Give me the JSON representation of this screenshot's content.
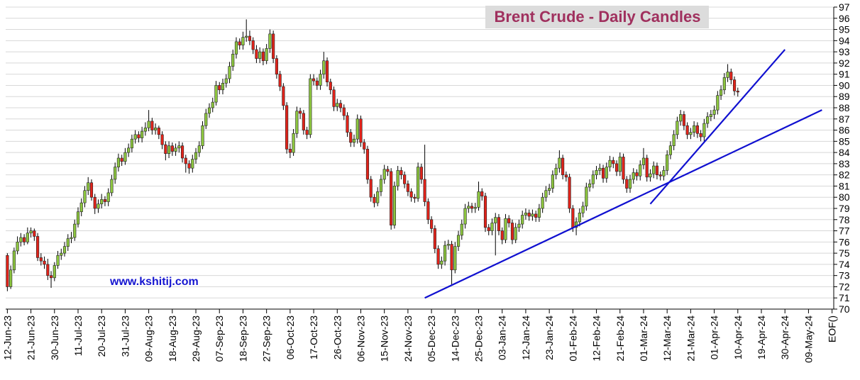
{
  "chart_data": {
    "type": "candlestick",
    "title": "Brent Crude - Daily Candles",
    "annotation": "www.kshitij.com",
    "up_color": "#8dc63f",
    "down_color": "#e2231a",
    "grid": true,
    "ylim": [
      70,
      97
    ],
    "yticks": [
      70,
      71,
      72,
      73,
      74,
      75,
      76,
      77,
      78,
      79,
      80,
      81,
      82,
      83,
      84,
      85,
      86,
      87,
      88,
      89,
      90,
      91,
      92,
      93,
      94,
      95,
      96,
      97
    ],
    "xlim": [
      -0.5,
      245.5
    ],
    "xticks": [
      {
        "value": 0,
        "label": "12-Jun-23"
      },
      {
        "value": 7,
        "label": "21-Jun-23"
      },
      {
        "value": 14,
        "label": "30-Jun-23"
      },
      {
        "value": 21,
        "label": "11-Jul-23"
      },
      {
        "value": 28,
        "label": "20-Jul-23"
      },
      {
        "value": 35,
        "label": "31-Jul-23"
      },
      {
        "value": 42,
        "label": "09-Aug-23"
      },
      {
        "value": 49,
        "label": "18-Aug-23"
      },
      {
        "value": 56,
        "label": "29-Aug-23"
      },
      {
        "value": 63,
        "label": "07-Sep-23"
      },
      {
        "value": 70,
        "label": "18-Sep-23"
      },
      {
        "value": 77,
        "label": "27-Sep-23"
      },
      {
        "value": 84,
        "label": "06-Oct-23"
      },
      {
        "value": 91,
        "label": "17-Oct-23"
      },
      {
        "value": 98,
        "label": "26-Oct-23"
      },
      {
        "value": 105,
        "label": "06-Nov-23"
      },
      {
        "value": 112,
        "label": "15-Nov-23"
      },
      {
        "value": 119,
        "label": "24-Nov-23"
      },
      {
        "value": 126,
        "label": "05-Dec-23"
      },
      {
        "value": 133,
        "label": "14-Dec-23"
      },
      {
        "value": 140,
        "label": "25-Dec-23"
      },
      {
        "value": 147,
        "label": "03-Jan-24"
      },
      {
        "value": 154,
        "label": "12-Jan-24"
      },
      {
        "value": 161,
        "label": "23-Jan-24"
      },
      {
        "value": 168,
        "label": "01-Feb-24"
      },
      {
        "value": 175,
        "label": "12-Feb-24"
      },
      {
        "value": 182,
        "label": "21-Feb-24"
      },
      {
        "value": 189,
        "label": "01-Mar-24"
      },
      {
        "value": 196,
        "label": "12-Mar-24"
      },
      {
        "value": 203,
        "label": "21-Mar-24"
      },
      {
        "value": 210,
        "label": "01-Apr-24"
      },
      {
        "value": 217,
        "label": "10-Apr-24"
      },
      {
        "value": 224,
        "label": "19-Apr-24"
      },
      {
        "value": 231,
        "label": "30-Apr-24"
      },
      {
        "value": 238,
        "label": "09-May-24"
      },
      {
        "value": 245,
        "label": "EOF()"
      }
    ],
    "candles": [
      [
        74.8,
        75.0,
        71.6,
        72.0
      ],
      [
        72.0,
        73.9,
        71.8,
        73.5
      ],
      [
        73.5,
        75.5,
        73.2,
        75.2
      ],
      [
        75.2,
        76.5,
        74.9,
        76.0
      ],
      [
        76.0,
        76.8,
        75.6,
        76.4
      ],
      [
        76.4,
        76.7,
        75.7,
        76.0
      ],
      [
        76.0,
        77.3,
        75.8,
        76.8
      ],
      [
        76.8,
        77.3,
        76.4,
        77.0
      ],
      [
        77.0,
        77.2,
        76.1,
        76.5
      ],
      [
        76.5,
        76.8,
        74.3,
        74.6
      ],
      [
        74.6,
        75.0,
        73.9,
        74.3
      ],
      [
        74.3,
        74.7,
        73.6,
        74.0
      ],
      [
        74.0,
        74.5,
        72.6,
        73.0
      ],
      [
        73.0,
        73.4,
        71.9,
        72.8
      ],
      [
        72.8,
        74.2,
        72.5,
        73.9
      ],
      [
        73.9,
        75.2,
        73.6,
        74.8
      ],
      [
        74.8,
        75.4,
        74.4,
        75.0
      ],
      [
        75.0,
        76.0,
        74.7,
        75.6
      ],
      [
        75.6,
        76.7,
        75.2,
        76.3
      ],
      [
        76.3,
        76.9,
        75.9,
        76.4
      ],
      [
        76.4,
        78.0,
        76.1,
        77.6
      ],
      [
        77.6,
        79.1,
        77.3,
        78.7
      ],
      [
        78.7,
        79.9,
        78.3,
        79.5
      ],
      [
        79.5,
        81.0,
        79.1,
        80.6
      ],
      [
        80.6,
        81.8,
        80.2,
        81.3
      ],
      [
        81.3,
        81.6,
        79.7,
        80.0
      ],
      [
        80.0,
        80.3,
        78.5,
        79.0
      ],
      [
        79.0,
        79.8,
        78.6,
        79.4
      ],
      [
        79.4,
        80.3,
        79.0,
        79.8
      ],
      [
        79.8,
        80.1,
        79.2,
        79.6
      ],
      [
        79.6,
        80.8,
        79.2,
        80.4
      ],
      [
        80.4,
        82.0,
        80.1,
        81.6
      ],
      [
        81.6,
        83.1,
        81.2,
        82.7
      ],
      [
        82.7,
        83.9,
        82.3,
        83.5
      ],
      [
        83.5,
        83.8,
        82.8,
        83.2
      ],
      [
        83.2,
        84.4,
        82.9,
        84.0
      ],
      [
        84.0,
        84.8,
        83.6,
        84.4
      ],
      [
        84.4,
        85.6,
        84.0,
        85.2
      ],
      [
        85.2,
        86.0,
        84.8,
        85.6
      ],
      [
        85.6,
        85.9,
        84.9,
        85.3
      ],
      [
        85.3,
        86.3,
        84.9,
        85.9
      ],
      [
        85.9,
        86.7,
        85.5,
        86.2
      ],
      [
        86.2,
        87.8,
        85.9,
        86.8
      ],
      [
        86.8,
        87.1,
        85.6,
        86.0
      ],
      [
        86.0,
        86.6,
        85.6,
        86.2
      ],
      [
        86.2,
        86.4,
        85.2,
        85.6
      ],
      [
        85.6,
        85.9,
        84.3,
        84.7
      ],
      [
        84.7,
        85.0,
        83.3,
        83.9
      ],
      [
        83.9,
        85.0,
        83.5,
        84.6
      ],
      [
        84.6,
        84.9,
        83.7,
        84.1
      ],
      [
        84.1,
        84.8,
        83.7,
        84.4
      ],
      [
        84.4,
        85.0,
        84.0,
        84.6
      ],
      [
        84.6,
        84.9,
        83.1,
        83.5
      ],
      [
        83.5,
        83.8,
        82.2,
        83.0
      ],
      [
        83.0,
        83.3,
        82.1,
        82.6
      ],
      [
        82.6,
        83.8,
        82.2,
        83.4
      ],
      [
        83.4,
        84.4,
        83.0,
        84.0
      ],
      [
        84.0,
        85.0,
        83.6,
        84.6
      ],
      [
        84.6,
        86.8,
        84.3,
        86.4
      ],
      [
        86.4,
        87.9,
        86.1,
        87.5
      ],
      [
        87.5,
        88.4,
        87.1,
        88.0
      ],
      [
        88.0,
        88.9,
        87.6,
        88.5
      ],
      [
        88.5,
        90.4,
        88.2,
        90.0
      ],
      [
        90.0,
        90.3,
        89.2,
        89.6
      ],
      [
        89.6,
        90.6,
        89.2,
        90.2
      ],
      [
        90.2,
        91.0,
        89.8,
        90.6
      ],
      [
        90.6,
        92.1,
        90.2,
        91.7
      ],
      [
        91.7,
        93.2,
        91.3,
        92.8
      ],
      [
        92.8,
        94.3,
        92.4,
        93.9
      ],
      [
        93.9,
        94.2,
        93.2,
        93.6
      ],
      [
        93.6,
        94.8,
        93.2,
        94.3
      ],
      [
        94.3,
        95.9,
        93.9,
        94.4
      ],
      [
        94.4,
        94.9,
        93.6,
        94.0
      ],
      [
        94.0,
        94.3,
        92.8,
        93.2
      ],
      [
        93.2,
        93.6,
        92.0,
        92.4
      ],
      [
        92.4,
        93.4,
        92.0,
        93.0
      ],
      [
        93.0,
        93.3,
        91.8,
        92.2
      ],
      [
        92.2,
        93.7,
        91.9,
        93.3
      ],
      [
        93.3,
        95.0,
        92.9,
        94.6
      ],
      [
        94.6,
        94.9,
        92.0,
        92.4
      ],
      [
        92.4,
        92.7,
        90.6,
        91.0
      ],
      [
        91.0,
        91.3,
        89.5,
        89.9
      ],
      [
        89.9,
        90.2,
        87.8,
        88.2
      ],
      [
        88.2,
        88.5,
        83.9,
        84.3
      ],
      [
        84.3,
        84.8,
        83.5,
        84.0
      ],
      [
        84.0,
        86.1,
        83.7,
        85.7
      ],
      [
        85.7,
        88.1,
        85.3,
        87.7
      ],
      [
        87.7,
        88.0,
        87.0,
        87.5
      ],
      [
        87.5,
        87.8,
        85.6,
        86.0
      ],
      [
        86.0,
        86.3,
        85.2,
        85.6
      ],
      [
        85.6,
        91.0,
        85.3,
        90.6
      ],
      [
        90.6,
        91.0,
        90.0,
        90.4
      ],
      [
        90.4,
        90.7,
        89.6,
        90.0
      ],
      [
        90.0,
        91.4,
        89.6,
        91.0
      ],
      [
        91.0,
        93.0,
        90.6,
        92.2
      ],
      [
        92.2,
        92.5,
        89.9,
        90.3
      ],
      [
        90.3,
        90.6,
        89.2,
        89.6
      ],
      [
        89.6,
        89.9,
        87.7,
        88.1
      ],
      [
        88.1,
        88.8,
        87.7,
        88.4
      ],
      [
        88.4,
        88.7,
        87.6,
        88.0
      ],
      [
        88.0,
        88.3,
        86.9,
        87.3
      ],
      [
        87.3,
        87.6,
        85.4,
        85.8
      ],
      [
        85.8,
        86.1,
        84.5,
        84.9
      ],
      [
        84.9,
        85.6,
        84.5,
        85.2
      ],
      [
        85.2,
        87.4,
        84.8,
        87.0
      ],
      [
        87.0,
        87.3,
        84.5,
        84.9
      ],
      [
        84.9,
        85.2,
        83.9,
        84.3
      ],
      [
        84.3,
        84.6,
        81.2,
        81.6
      ],
      [
        81.6,
        81.9,
        79.6,
        80.0
      ],
      [
        80.0,
        80.3,
        79.1,
        79.5
      ],
      [
        79.5,
        80.9,
        79.2,
        80.5
      ],
      [
        80.5,
        82.0,
        80.1,
        81.6
      ],
      [
        81.6,
        82.9,
        81.2,
        82.5
      ],
      [
        82.5,
        82.8,
        81.9,
        82.3
      ],
      [
        82.3,
        82.6,
        77.1,
        77.5
      ],
      [
        77.5,
        81.4,
        77.2,
        81.0
      ],
      [
        81.0,
        82.8,
        80.6,
        82.4
      ],
      [
        82.4,
        82.7,
        81.6,
        82.0
      ],
      [
        82.0,
        82.3,
        80.8,
        81.2
      ],
      [
        81.2,
        81.5,
        80.1,
        80.5
      ],
      [
        80.5,
        80.8,
        79.6,
        80.0
      ],
      [
        80.0,
        80.3,
        79.5,
        79.9
      ],
      [
        79.9,
        83.1,
        79.6,
        82.7
      ],
      [
        82.7,
        83.0,
        81.2,
        81.6
      ],
      [
        81.6,
        84.7,
        79.2,
        79.6
      ],
      [
        79.6,
        79.9,
        77.6,
        78.0
      ],
      [
        78.0,
        78.3,
        76.8,
        77.2
      ],
      [
        77.2,
        77.5,
        75.0,
        75.4
      ],
      [
        75.4,
        75.7,
        73.6,
        74.0
      ],
      [
        74.0,
        74.7,
        73.6,
        74.3
      ],
      [
        74.3,
        76.1,
        73.9,
        75.7
      ],
      [
        75.7,
        76.2,
        75.3,
        75.8
      ],
      [
        75.8,
        76.1,
        72.2,
        73.5
      ],
      [
        73.5,
        76.0,
        73.2,
        75.6
      ],
      [
        75.6,
        77.0,
        75.2,
        76.6
      ],
      [
        76.6,
        78.0,
        76.2,
        77.6
      ],
      [
        77.6,
        79.4,
        77.2,
        79.0
      ],
      [
        79.0,
        79.6,
        78.6,
        79.2
      ],
      [
        79.2,
        79.5,
        78.6,
        79.0
      ],
      [
        79.0,
        79.5,
        78.6,
        79.1
      ],
      [
        79.1,
        81.4,
        78.8,
        80.5
      ],
      [
        80.5,
        80.8,
        79.7,
        80.1
      ],
      [
        80.1,
        80.4,
        76.9,
        77.3
      ],
      [
        77.3,
        77.6,
        76.6,
        77.0
      ],
      [
        77.0,
        78.1,
        76.6,
        77.7
      ],
      [
        77.7,
        78.6,
        74.8,
        78.2
      ],
      [
        78.2,
        78.5,
        76.6,
        77.0
      ],
      [
        77.0,
        77.3,
        75.8,
        76.2
      ],
      [
        76.2,
        78.5,
        75.9,
        78.1
      ],
      [
        78.1,
        78.4,
        77.3,
        77.7
      ],
      [
        77.7,
        78.0,
        75.8,
        76.2
      ],
      [
        76.2,
        77.7,
        75.9,
        77.3
      ],
      [
        77.3,
        78.0,
        76.9,
        77.6
      ],
      [
        77.6,
        78.8,
        77.2,
        78.4
      ],
      [
        78.4,
        79.0,
        78.0,
        78.6
      ],
      [
        78.6,
        78.9,
        77.9,
        78.3
      ],
      [
        78.3,
        78.9,
        77.9,
        78.5
      ],
      [
        78.5,
        78.8,
        77.8,
        78.2
      ],
      [
        78.2,
        79.4,
        77.8,
        79.0
      ],
      [
        79.0,
        80.4,
        78.6,
        80.0
      ],
      [
        80.0,
        81.0,
        79.6,
        80.6
      ],
      [
        80.6,
        81.2,
        80.2,
        80.8
      ],
      [
        80.8,
        82.4,
        80.4,
        82.0
      ],
      [
        82.0,
        83.0,
        81.6,
        82.6
      ],
      [
        82.6,
        84.2,
        82.2,
        83.5
      ],
      [
        83.5,
        83.8,
        81.6,
        82.0
      ],
      [
        82.0,
        82.3,
        81.4,
        81.8
      ],
      [
        81.8,
        82.1,
        78.6,
        79.0
      ],
      [
        79.0,
        79.3,
        76.9,
        77.3
      ],
      [
        77.3,
        78.2,
        76.6,
        77.8
      ],
      [
        77.8,
        79.0,
        77.4,
        78.6
      ],
      [
        78.6,
        79.6,
        78.2,
        79.2
      ],
      [
        79.2,
        81.3,
        78.8,
        80.9
      ],
      [
        80.9,
        81.6,
        80.5,
        81.2
      ],
      [
        81.2,
        82.4,
        80.8,
        82.0
      ],
      [
        82.0,
        82.8,
        81.6,
        82.4
      ],
      [
        82.4,
        83.0,
        82.0,
        82.6
      ],
      [
        82.6,
        82.9,
        81.3,
        81.7
      ],
      [
        81.7,
        83.1,
        81.3,
        82.7
      ],
      [
        82.7,
        83.7,
        82.3,
        83.3
      ],
      [
        83.3,
        83.6,
        82.6,
        83.0
      ],
      [
        83.0,
        83.3,
        81.9,
        82.3
      ],
      [
        82.3,
        84.0,
        81.9,
        83.6
      ],
      [
        83.6,
        83.9,
        81.2,
        81.6
      ],
      [
        81.6,
        81.9,
        80.4,
        80.8
      ],
      [
        80.8,
        82.0,
        80.4,
        81.6
      ],
      [
        81.6,
        82.6,
        81.2,
        82.2
      ],
      [
        82.2,
        82.5,
        81.5,
        81.9
      ],
      [
        81.9,
        83.3,
        81.5,
        82.9
      ],
      [
        82.9,
        84.4,
        82.5,
        83.5
      ],
      [
        83.5,
        83.8,
        81.4,
        81.8
      ],
      [
        81.8,
        82.5,
        81.4,
        82.1
      ],
      [
        82.1,
        83.2,
        81.7,
        82.8
      ],
      [
        82.8,
        83.1,
        81.6,
        82.0
      ],
      [
        82.0,
        82.3,
        81.5,
        81.9
      ],
      [
        81.9,
        82.8,
        81.5,
        82.4
      ],
      [
        82.4,
        84.2,
        82.0,
        83.8
      ],
      [
        83.8,
        85.0,
        83.4,
        84.6
      ],
      [
        84.6,
        86.0,
        84.2,
        85.6
      ],
      [
        85.6,
        87.2,
        85.2,
        86.8
      ],
      [
        86.8,
        87.8,
        86.4,
        87.4
      ],
      [
        87.4,
        87.7,
        86.0,
        86.4
      ],
      [
        86.4,
        86.7,
        85.2,
        85.6
      ],
      [
        85.6,
        86.2,
        85.2,
        85.8
      ],
      [
        85.8,
        86.8,
        85.4,
        86.4
      ],
      [
        86.4,
        86.7,
        85.3,
        85.7
      ],
      [
        85.7,
        86.0,
        85.0,
        85.4
      ],
      [
        85.4,
        87.0,
        85.0,
        86.6
      ],
      [
        86.6,
        87.6,
        86.2,
        87.2
      ],
      [
        87.2,
        87.8,
        86.8,
        87.4
      ],
      [
        87.4,
        88.2,
        87.0,
        87.8
      ],
      [
        87.8,
        89.5,
        87.4,
        89.1
      ],
      [
        89.1,
        90.0,
        88.7,
        89.6
      ],
      [
        89.6,
        91.1,
        89.2,
        90.7
      ],
      [
        90.7,
        91.9,
        90.3,
        91.2
      ],
      [
        91.2,
        91.5,
        90.1,
        90.5
      ],
      [
        90.5,
        90.8,
        89.1,
        89.5
      ],
      [
        89.5,
        89.8,
        89.0,
        89.4
      ]
    ],
    "trendlines": [
      {
        "color": "#1010d0",
        "x": [
          124,
          242
        ],
        "y": [
          71.0,
          87.8
        ]
      },
      {
        "color": "#1010d0",
        "x": [
          191,
          231
        ],
        "y": [
          79.4,
          93.2
        ]
      }
    ]
  }
}
